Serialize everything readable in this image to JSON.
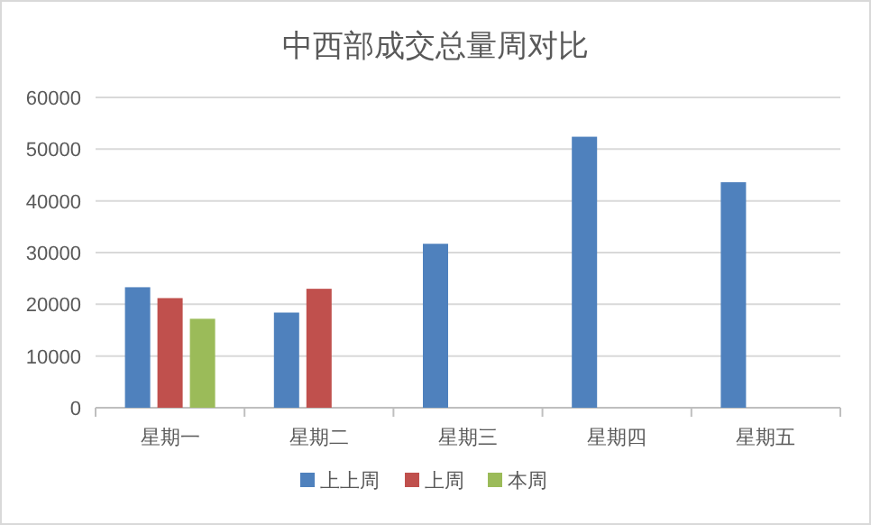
{
  "chart_data": {
    "type": "bar",
    "title": "中西部成交总量周对比",
    "categories": [
      "星期一",
      "星期二",
      "星期三",
      "星期四",
      "星期五"
    ],
    "series": [
      {
        "name": "上上周",
        "color": "#4f81bd",
        "values": [
          23300,
          18400,
          31700,
          52400,
          43600
        ]
      },
      {
        "name": "上周",
        "color": "#c0504d",
        "values": [
          21200,
          23000,
          null,
          null,
          null
        ]
      },
      {
        "name": "本周",
        "color": "#9bbb59",
        "values": [
          17200,
          null,
          null,
          null,
          null
        ]
      }
    ],
    "ylim": [
      0,
      60000
    ],
    "yticks": [
      0,
      10000,
      20000,
      30000,
      40000,
      50000,
      60000
    ],
    "grid": "y",
    "legend": "bottom"
  }
}
